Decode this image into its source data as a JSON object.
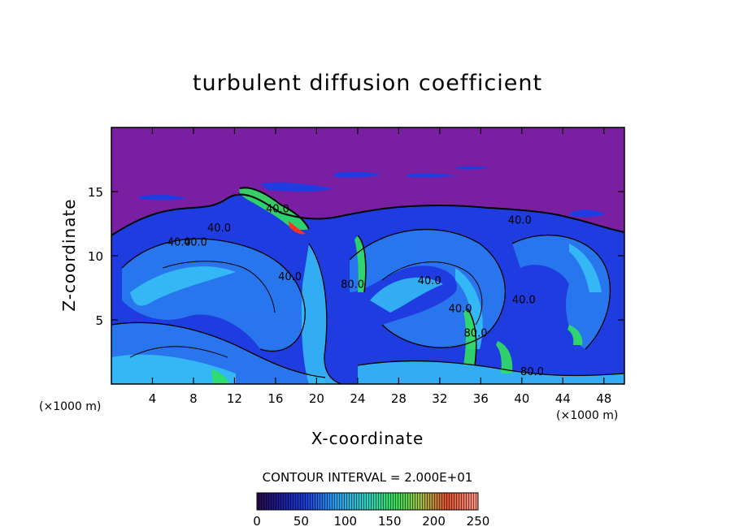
{
  "chart_data": {
    "type": "heatmap",
    "title": "turbulent diffusion coefficient",
    "xlabel": "X-coordinate",
    "ylabel": "Z-coordinate",
    "x_unit": "(×1000 m)",
    "y_unit": "(×1000 m)",
    "xlim": [
      0,
      50
    ],
    "ylim": [
      0,
      20
    ],
    "x_ticks": [
      4,
      8,
      12,
      16,
      20,
      24,
      28,
      32,
      36,
      40,
      44,
      48
    ],
    "y_ticks": [
      5,
      10,
      15
    ],
    "contour_interval_text": "CONTOUR INTERVAL = 2.000E+01",
    "contour_labels": [
      {
        "text": "40.0",
        "x": 6.6,
        "z": 10.8
      },
      {
        "text": "40.0",
        "x": 8.2,
        "z": 10.8
      },
      {
        "text": "40.0",
        "x": 10.5,
        "z": 11.9
      },
      {
        "text": "40.0",
        "x": 16.2,
        "z": 13.4
      },
      {
        "text": "40.0",
        "x": 17.4,
        "z": 8.1
      },
      {
        "text": "80.0",
        "x": 23.5,
        "z": 7.5
      },
      {
        "text": "40.0",
        "x": 31.0,
        "z": 7.8
      },
      {
        "text": "40.0",
        "x": 34.0,
        "z": 5.6
      },
      {
        "text": "80.0",
        "x": 35.5,
        "z": 3.7
      },
      {
        "text": "40.0",
        "x": 39.8,
        "z": 12.5
      },
      {
        "text": "40.0",
        "x": 40.2,
        "z": 6.3
      },
      {
        "text": "80.0",
        "x": 41.0,
        "z": 0.7
      }
    ],
    "colorbar": {
      "min": 0,
      "max": 250,
      "ticks": [
        0,
        50,
        100,
        150,
        200,
        250
      ]
    },
    "colors": {
      "background_stratosphere": "#7b1fa2",
      "low": "#1a1ae0",
      "mid": "#28a8ff",
      "high": "#30e060",
      "peak": "#ff3020"
    }
  }
}
